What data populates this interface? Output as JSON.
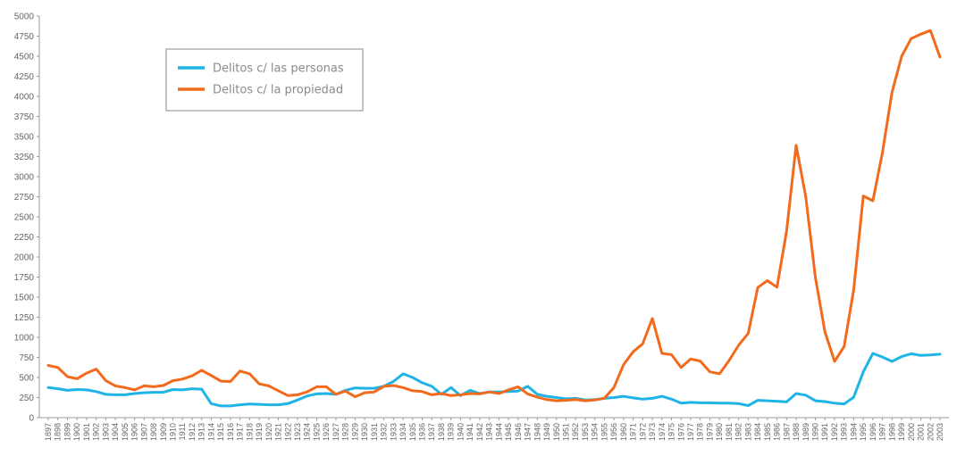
{
  "chart_data": {
    "type": "line",
    "title": "",
    "xlabel": "",
    "ylabel": "",
    "ylim": [
      0,
      5000
    ],
    "y_ticks": [
      "0",
      "250",
      "500",
      "750",
      "1000",
      "1250",
      "1500",
      "1750",
      "2000",
      "2250",
      "2500",
      "2750",
      "3000",
      "3250",
      "3500",
      "3750",
      "4000",
      "4250",
      "4500",
      "4750",
      "5000"
    ],
    "grid": false,
    "legend_position": "top-left",
    "categories": [
      "1897",
      "1898",
      "1899",
      "1900",
      "1901",
      "1902",
      "1903",
      "1904",
      "1905",
      "1906",
      "1907",
      "1908",
      "1909",
      "1910",
      "1911",
      "1912",
      "1913",
      "1914",
      "1915",
      "1916",
      "1917",
      "1918",
      "1919",
      "1920",
      "1921",
      "1922",
      "1923",
      "1924",
      "1925",
      "1926",
      "1927",
      "1928",
      "1929",
      "1930",
      "1931",
      "1932",
      "1933",
      "1934",
      "1935",
      "1936",
      "1937",
      "1938",
      "1939",
      "1940",
      "1941",
      "1942",
      "1943",
      "1944",
      "1945",
      "1946",
      "1947",
      "1948",
      "1949",
      "1950",
      "1951",
      "1952",
      "1953",
      "1954",
      "1955",
      "1956",
      "1960",
      "1971",
      "1972",
      "1973",
      "1974",
      "1975",
      "1976",
      "1977",
      "1978",
      "1979",
      "1980",
      "1981",
      "1982",
      "1983",
      "1984",
      "1985",
      "1986",
      "1987",
      "1988",
      "1989",
      "1990",
      "1991",
      "1992",
      "1993",
      "1994",
      "1995",
      "1996",
      "1997",
      "1998",
      "1999",
      "2000",
      "2001",
      "2002",
      "2003"
    ],
    "series": [
      {
        "name": "Delitos c/ las personas",
        "color": "#1eb4e6",
        "values": [
          375,
          360,
          340,
          350,
          345,
          325,
          290,
          285,
          285,
          300,
          310,
          315,
          315,
          350,
          345,
          360,
          355,
          175,
          145,
          145,
          160,
          170,
          165,
          160,
          160,
          175,
          220,
          270,
          295,
          300,
          290,
          340,
          370,
          365,
          365,
          390,
          450,
          545,
          500,
          435,
          390,
          290,
          375,
          275,
          340,
          300,
          320,
          320,
          325,
          330,
          390,
          290,
          265,
          250,
          235,
          240,
          220,
          225,
          240,
          250,
          265,
          245,
          230,
          240,
          265,
          230,
          180,
          190,
          185,
          185,
          180,
          180,
          175,
          150,
          215,
          210,
          205,
          195,
          300,
          280,
          210,
          200,
          180,
          170,
          255,
          570,
          800,
          755,
          700,
          760,
          795,
          775,
          780,
          790
        ]
      },
      {
        "name": "Delitos c/ la propiedad",
        "color": "#f26b1d",
        "values": [
          650,
          625,
          510,
          485,
          555,
          605,
          460,
          395,
          375,
          345,
          395,
          385,
          400,
          460,
          480,
          520,
          590,
          525,
          455,
          450,
          580,
          545,
          420,
          395,
          335,
          275,
          285,
          320,
          385,
          385,
          290,
          330,
          260,
          310,
          320,
          390,
          400,
          375,
          335,
          325,
          285,
          300,
          275,
          285,
          300,
          295,
          320,
          300,
          345,
          385,
          295,
          255,
          225,
          210,
          215,
          225,
          210,
          220,
          240,
          375,
          660,
          820,
          920,
          1235,
          800,
          785,
          625,
          730,
          705,
          570,
          545,
          710,
          900,
          1050,
          1620,
          1705,
          1625,
          2320,
          3390,
          2750,
          1750,
          1070,
          700,
          885,
          1590,
          2760,
          2700,
          3300,
          4050,
          4500,
          4720,
          4775,
          4820,
          4490
        ]
      }
    ]
  }
}
